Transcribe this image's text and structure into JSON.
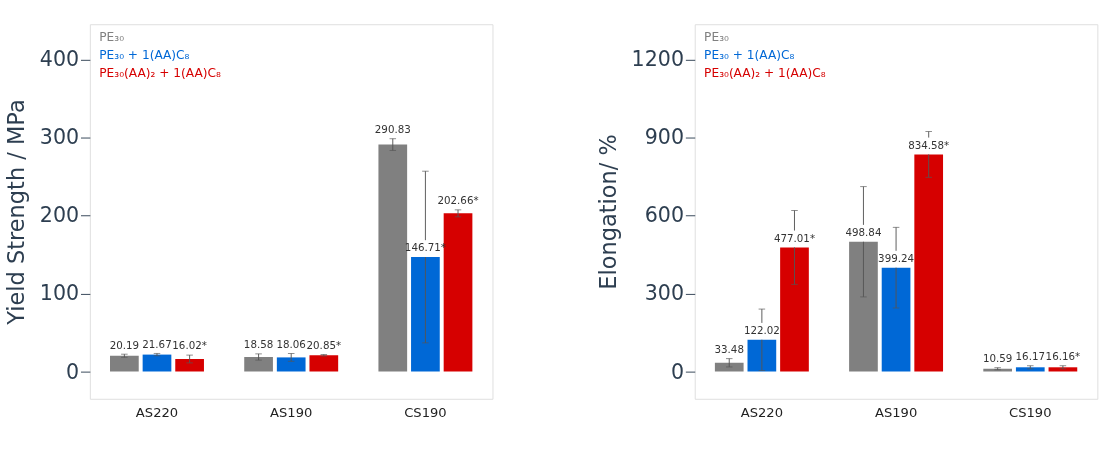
{
  "chart_data": [
    {
      "type": "bar",
      "ylabel": "Yield Strength / MPa",
      "categories": [
        "AS220",
        "AS190",
        "CS190"
      ],
      "ylim": [
        -35,
        445
      ],
      "yticks": [
        0,
        100,
        200,
        300,
        400
      ],
      "grid": false,
      "legend": "top left",
      "series": [
        {
          "name": "PE₃₀",
          "color": "#808080",
          "values": [
            20.19,
            18.58,
            290.83
          ],
          "errors": [
            2,
            4,
            7.5
          ],
          "value_labels": [
            "20.19",
            "18.58",
            "290.83"
          ]
        },
        {
          "name": "PE₃₀ + 1(AA)C₈",
          "color": "#0068d6",
          "values": [
            21.67,
            18.06,
            146.71
          ],
          "errors": [
            1.5,
            5,
            110
          ],
          "value_labels": [
            "21.67",
            "18.06",
            "146.71*"
          ]
        },
        {
          "name": "PE₃₀(AA)₂ + 1(AA)C₈",
          "color": "#d60000",
          "values": [
            16.02,
            20.85,
            202.66
          ],
          "errors": [
            5,
            1,
            4.5
          ],
          "value_labels": [
            "16.02*",
            "20.85*",
            "202.66*"
          ]
        }
      ]
    },
    {
      "type": "bar",
      "ylabel": "Elongation/ %",
      "categories": [
        "AS220",
        "AS190",
        "CS190"
      ],
      "ylim": [
        -105,
        1335
      ],
      "yticks": [
        0,
        300,
        600,
        900,
        1200
      ],
      "grid": false,
      "legend": "top left",
      "series": [
        {
          "name": "PE₃₀",
          "color": "#808080",
          "values": [
            33.48,
            498.84,
            10.59
          ],
          "errors": [
            16,
            212,
            4
          ],
          "value_labels": [
            "33.48",
            "498.84",
            "10.59"
          ]
        },
        {
          "name": "PE₃₀ + 1(AA)C₈",
          "color": "#0068d6",
          "values": [
            122.02,
            399.24,
            16.17
          ],
          "errors": [
            118,
            155,
            6
          ],
          "value_labels": [
            "122.02",
            "399.24",
            "16.17"
          ]
        },
        {
          "name": "PE₃₀(AA)₂ + 1(AA)C₈",
          "color": "#d60000",
          "values": [
            477.01,
            834.58,
            16.16
          ],
          "errors": [
            142,
            88,
            6
          ],
          "value_labels": [
            "477.01*",
            "834.58*",
            "16.16*"
          ]
        }
      ]
    }
  ]
}
